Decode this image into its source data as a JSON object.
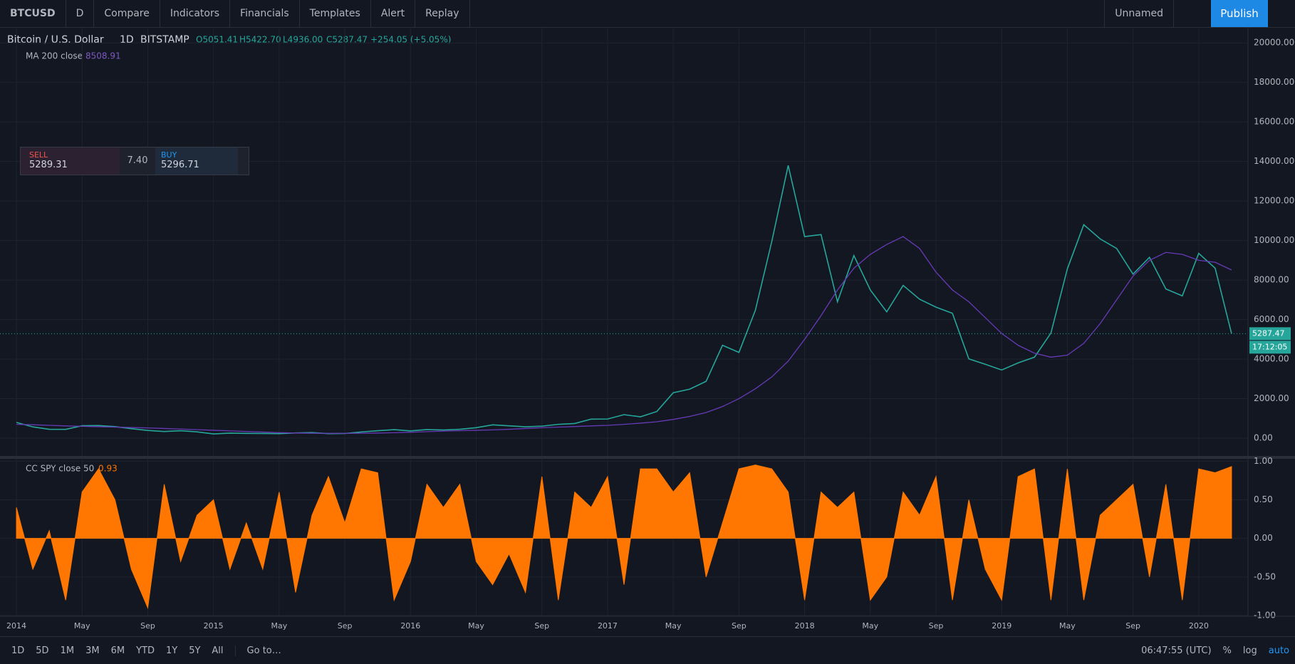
{
  "toolbar": {
    "symbol": "BTCUSD",
    "interval": "D",
    "compare": "Compare",
    "indicators": "Indicators",
    "financials": "Financials",
    "templates": "Templates",
    "alert": "Alert",
    "replay": "Replay",
    "layout": "Unnamed",
    "publish": "Publish"
  },
  "header": {
    "interval": "1D",
    "exchange": "BITSTAMP",
    "open": "O5051.41",
    "high": "H5422.70",
    "low": "L4936.00",
    "close": "C5287.47",
    "change": "+254.05 (+5.05%)"
  },
  "trade": {
    "sell_label": "SELL",
    "sell_price": "5289.31",
    "spread": "7.40",
    "buy_label": "BUY",
    "buy_price": "5296.71"
  },
  "chart_data": [
    {
      "type": "line",
      "xlim": [
        "2013-12",
        "2020-04"
      ],
      "ylim": [
        -900,
        20800
      ],
      "yticks": [
        {
          "value": 0,
          "label": "0.00"
        },
        {
          "value": 2000,
          "label": "2000.00"
        },
        {
          "value": 4000,
          "label": "4000.00"
        },
        {
          "value": 6000,
          "label": "6000.00"
        },
        {
          "value": 8000,
          "label": "8000.00"
        },
        {
          "value": 10000,
          "label": "10000.00"
        },
        {
          "value": 12000,
          "label": "12000.00"
        },
        {
          "value": 14000,
          "label": "14000.00"
        },
        {
          "value": 16000,
          "label": "16000.00"
        },
        {
          "value": 18000,
          "label": "18000.00"
        },
        {
          "value": 20000,
          "label": "20000.00"
        }
      ],
      "grid": true,
      "countdown": "17:12:05",
      "x": [
        "2014-01",
        "2014-02",
        "2014-03",
        "2014-04",
        "2014-05",
        "2014-06",
        "2014-07",
        "2014-08",
        "2014-09",
        "2014-10",
        "2014-11",
        "2014-12",
        "2015-01",
        "2015-02",
        "2015-03",
        "2015-04",
        "2015-05",
        "2015-06",
        "2015-07",
        "2015-08",
        "2015-09",
        "2015-10",
        "2015-11",
        "2015-12",
        "2016-01",
        "2016-02",
        "2016-03",
        "2016-04",
        "2016-05",
        "2016-06",
        "2016-07",
        "2016-08",
        "2016-09",
        "2016-10",
        "2016-11",
        "2016-12",
        "2017-01",
        "2017-02",
        "2017-03",
        "2017-04",
        "2017-05",
        "2017-06",
        "2017-07",
        "2017-08",
        "2017-09",
        "2017-10",
        "2017-11",
        "2017-12",
        "2018-01",
        "2018-02",
        "2018-03",
        "2018-04",
        "2018-05",
        "2018-06",
        "2018-07",
        "2018-08",
        "2018-09",
        "2018-10",
        "2018-11",
        "2018-12",
        "2019-01",
        "2019-02",
        "2019-03",
        "2019-04",
        "2019-05",
        "2019-06",
        "2019-07",
        "2019-08",
        "2019-09",
        "2019-10",
        "2019-11",
        "2019-12",
        "2020-01",
        "2020-02",
        "2020-03"
      ],
      "series": [
        {
          "name": "Bitcoin / U.S. Dollar",
          "color": "#26a69a",
          "last_label": "5287.47",
          "values": [
            800,
            570,
            450,
            445,
            630,
            640,
            585,
            480,
            390,
            338,
            378,
            320,
            217,
            254,
            244,
            236,
            230,
            263,
            284,
            230,
            236,
            314,
            377,
            430,
            368,
            437,
            416,
            448,
            531,
            673,
            624,
            575,
            609,
            700,
            742,
            964,
            970,
            1190,
            1080,
            1350,
            2300,
            2480,
            2875,
            4700,
            4340,
            6470,
            9950,
            13800,
            10200,
            10300,
            6900,
            9240,
            7500,
            6390,
            7730,
            7030,
            6630,
            6320,
            4010,
            3740,
            3450,
            3810,
            4100,
            5320,
            8570,
            10800,
            10080,
            9600,
            8300,
            9150,
            7550,
            7200,
            9350,
            8600,
            5287.47
          ]
        },
        {
          "name": "MA 200 close",
          "color": "#673ab7",
          "last_label": "8508.91",
          "values": [
            700,
            680,
            650,
            620,
            600,
            580,
            560,
            540,
            520,
            490,
            460,
            430,
            400,
            370,
            340,
            310,
            280,
            260,
            250,
            245,
            245,
            250,
            260,
            275,
            300,
            330,
            360,
            380,
            400,
            420,
            450,
            490,
            530,
            560,
            590,
            620,
            650,
            700,
            760,
            830,
            950,
            1100,
            1300,
            1600,
            2000,
            2500,
            3100,
            3900,
            5000,
            6200,
            7500,
            8600,
            9300,
            9800,
            10200,
            9600,
            8400,
            7500,
            6900,
            6100,
            5300,
            4700,
            4300,
            4100,
            4200,
            4800,
            5800,
            7000,
            8200,
            9000,
            9400,
            9300,
            9000,
            8900,
            8508.91
          ]
        }
      ]
    },
    {
      "type": "area",
      "xlim": [
        "2013-12",
        "2020-04"
      ],
      "ylim": [
        -1.0,
        1.03
      ],
      "yticks": [
        {
          "value": 1,
          "label": "1.00"
        },
        {
          "value": 0.5,
          "label": "0.50"
        },
        {
          "value": 0,
          "label": "0.00"
        },
        {
          "value": -0.5,
          "label": "-0.50"
        },
        {
          "value": -1,
          "label": "-1.00"
        }
      ],
      "xticks": [
        {
          "value": "2014-01",
          "label": "2014"
        },
        {
          "value": "2014-05",
          "label": "May"
        },
        {
          "value": "2014-09",
          "label": "Sep"
        },
        {
          "value": "2015-01",
          "label": "2015"
        },
        {
          "value": "2015-05",
          "label": "May"
        },
        {
          "value": "2015-09",
          "label": "Sep"
        },
        {
          "value": "2016-01",
          "label": "2016"
        },
        {
          "value": "2016-05",
          "label": "May"
        },
        {
          "value": "2016-09",
          "label": "Sep"
        },
        {
          "value": "2017-01",
          "label": "2017"
        },
        {
          "value": "2017-05",
          "label": "May"
        },
        {
          "value": "2017-09",
          "label": "Sep"
        },
        {
          "value": "2018-01",
          "label": "2018"
        },
        {
          "value": "2018-05",
          "label": "May"
        },
        {
          "value": "2018-09",
          "label": "Sep"
        },
        {
          "value": "2019-01",
          "label": "2019"
        },
        {
          "value": "2019-05",
          "label": "May"
        },
        {
          "value": "2019-09",
          "label": "Sep"
        },
        {
          "value": "2020-01",
          "label": "2020"
        }
      ],
      "x": [
        "2014-01",
        "2014-02",
        "2014-03",
        "2014-04",
        "2014-05",
        "2014-06",
        "2014-07",
        "2014-08",
        "2014-09",
        "2014-10",
        "2014-11",
        "2014-12",
        "2015-01",
        "2015-02",
        "2015-03",
        "2015-04",
        "2015-05",
        "2015-06",
        "2015-07",
        "2015-08",
        "2015-09",
        "2015-10",
        "2015-11",
        "2015-12",
        "2016-01",
        "2016-02",
        "2016-03",
        "2016-04",
        "2016-05",
        "2016-06",
        "2016-07",
        "2016-08",
        "2016-09",
        "2016-10",
        "2016-11",
        "2016-12",
        "2017-01",
        "2017-02",
        "2017-03",
        "2017-04",
        "2017-05",
        "2017-06",
        "2017-07",
        "2017-08",
        "2017-09",
        "2017-10",
        "2017-11",
        "2017-12",
        "2018-01",
        "2018-02",
        "2018-03",
        "2018-04",
        "2018-05",
        "2018-06",
        "2018-07",
        "2018-08",
        "2018-09",
        "2018-10",
        "2018-11",
        "2018-12",
        "2019-01",
        "2019-02",
        "2019-03",
        "2019-04",
        "2019-05",
        "2019-06",
        "2019-07",
        "2019-08",
        "2019-09",
        "2019-10",
        "2019-11",
        "2019-12",
        "2020-01",
        "2020-02",
        "2020-03"
      ],
      "series": [
        {
          "name": "CC SPY close 50",
          "color": "#ff7700",
          "last_label": "0.93",
          "values": [
            0.4,
            -0.4,
            0.1,
            -0.8,
            0.6,
            0.9,
            0.5,
            -0.4,
            -0.9,
            0.7,
            -0.3,
            0.3,
            0.5,
            -0.4,
            0.2,
            -0.4,
            0.6,
            -0.7,
            0.3,
            0.8,
            0.2,
            0.9,
            0.85,
            -0.8,
            -0.3,
            0.7,
            0.4,
            0.7,
            -0.3,
            -0.6,
            -0.2,
            -0.7,
            0.8,
            -0.8,
            0.6,
            0.4,
            0.8,
            -0.6,
            0.9,
            0.9,
            0.6,
            0.85,
            -0.5,
            0.2,
            0.9,
            0.95,
            0.9,
            0.6,
            -0.8,
            0.6,
            0.4,
            0.6,
            -0.8,
            -0.5,
            0.6,
            0.3,
            0.8,
            -0.8,
            0.5,
            -0.4,
            -0.8,
            0.8,
            0.9,
            -0.8,
            0.9,
            -0.8,
            0.3,
            0.5,
            0.7,
            -0.5,
            0.7,
            -0.8,
            0.9,
            0.85,
            0.93
          ]
        }
      ]
    }
  ],
  "bottom": {
    "ranges": [
      "1D",
      "5D",
      "1M",
      "3M",
      "6M",
      "YTD",
      "1Y",
      "5Y",
      "All"
    ],
    "goto": "Go to…",
    "clock": "06:47:55 (UTC)",
    "percent": "%",
    "log": "log",
    "auto": "auto"
  }
}
